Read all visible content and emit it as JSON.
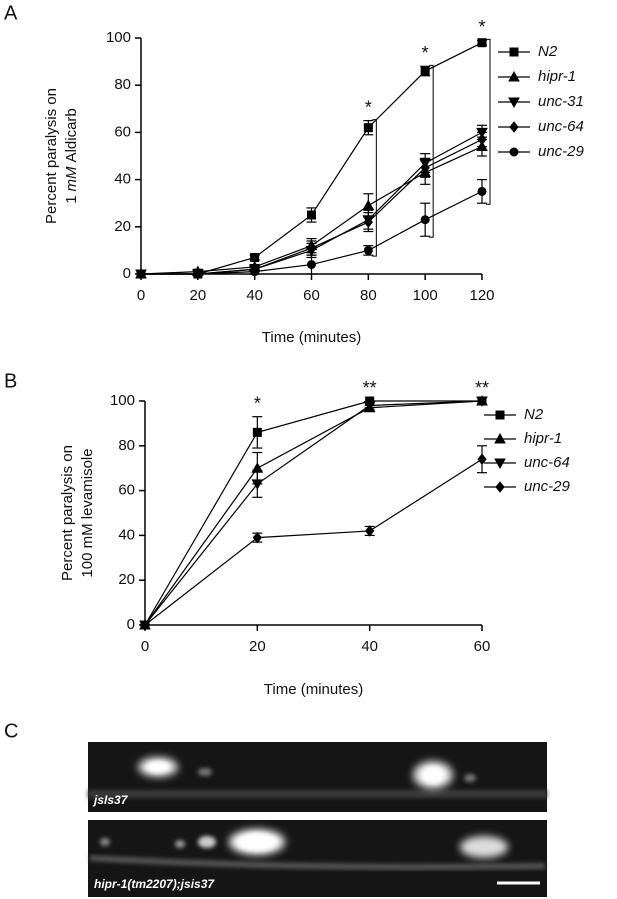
{
  "panel_labels": [
    "A",
    "B",
    "C"
  ],
  "images": [
    {
      "label": "jsIs37"
    },
    {
      "label": "hipr-1(tm2207);jsis37"
    }
  ],
  "chart_data": [
    {
      "type": "line",
      "xlabel": "Time (minutes)",
      "ylabel": [
        [
          "Percent paralysis on"
        ],
        [
          "1",
          "mM",
          "Aldicarb"
        ]
      ],
      "ylabel_italic": [
        [
          false
        ],
        [
          false,
          true,
          false
        ]
      ],
      "x": [
        0,
        20,
        40,
        60,
        80,
        100,
        120
      ],
      "xlim": [
        0,
        120
      ],
      "xticks": [
        0,
        20,
        40,
        60,
        80,
        100,
        120
      ],
      "ylim": [
        0,
        100
      ],
      "yticks": [
        0,
        20,
        40,
        60,
        80,
        100
      ],
      "legend": "right",
      "series": [
        {
          "name": "N2",
          "color": "#000000",
          "marker": "square",
          "values": [
            0,
            0,
            7,
            25,
            62,
            86,
            98
          ],
          "errors": [
            0,
            0,
            1,
            3,
            3,
            2,
            1
          ]
        },
        {
          "name": "hipr-1",
          "color": "#000000",
          "marker": "triangle-up",
          "values": [
            0,
            1,
            3,
            12,
            29,
            43,
            54
          ],
          "errors": [
            0,
            1,
            1,
            3,
            5,
            5,
            4
          ]
        },
        {
          "name": "unc-31",
          "color": "#000000",
          "marker": "triangle-down",
          "values": [
            0,
            0,
            2,
            10,
            23,
            47,
            60
          ],
          "errors": [
            0,
            0,
            1,
            3,
            4,
            4,
            3
          ]
        },
        {
          "name": "unc-64",
          "color": "#000000",
          "marker": "diamond",
          "values": [
            0,
            0,
            2,
            11,
            22,
            45,
            57
          ],
          "errors": [
            0,
            0,
            1,
            3,
            4,
            4,
            3
          ]
        },
        {
          "name": "unc-29",
          "color": "#000000",
          "marker": "circle",
          "values": [
            0,
            0,
            1,
            4,
            10,
            23,
            35
          ],
          "errors": [
            0,
            0,
            1,
            4,
            2,
            7,
            5
          ]
        }
      ],
      "annotations": [
        "*",
        "*",
        "*"
      ]
    },
    {
      "type": "line",
      "xlabel": "Time (minutes)",
      "ylabel": [
        [
          "Percent paralysis on"
        ],
        [
          "100 mM levamisole"
        ]
      ],
      "ylabel_italic": [
        [
          false
        ],
        [
          false
        ]
      ],
      "x": [
        0,
        20,
        40,
        60
      ],
      "xlim": [
        0,
        60
      ],
      "xticks": [
        0,
        20,
        40,
        60
      ],
      "ylim": [
        0,
        100
      ],
      "yticks": [
        0,
        20,
        40,
        60,
        80,
        100
      ],
      "legend": "right",
      "series": [
        {
          "name": "N2",
          "color": "#000000",
          "marker": "square",
          "values": [
            0,
            86,
            100,
            100
          ],
          "errors": [
            0,
            7,
            0,
            0
          ]
        },
        {
          "name": "hipr-1",
          "color": "#000000",
          "marker": "triangle-up",
          "values": [
            0,
            70,
            97,
            100
          ],
          "errors": [
            0,
            7,
            1,
            0
          ]
        },
        {
          "name": "unc-64",
          "color": "#000000",
          "marker": "triangle-down",
          "values": [
            0,
            63,
            98,
            100
          ],
          "errors": [
            0,
            6,
            1,
            0
          ]
        },
        {
          "name": "unc-29",
          "color": "#000000",
          "marker": "diamond",
          "values": [
            0,
            39,
            42,
            74
          ],
          "errors": [
            0,
            2,
            2,
            6
          ]
        }
      ],
      "annotations": [
        "*",
        "**",
        "**"
      ]
    }
  ]
}
